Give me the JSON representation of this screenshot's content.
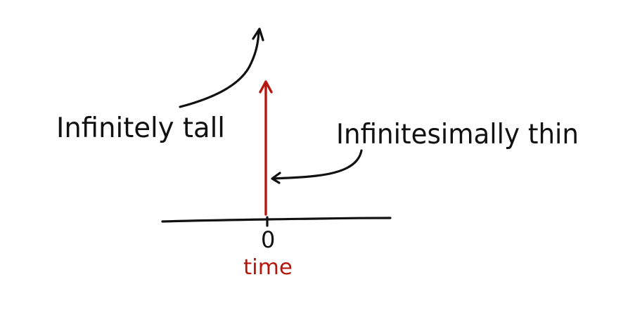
{
  "labels": {
    "tall": "Infinitely tall",
    "thin": "Infinitesimally thin",
    "zero": "0",
    "axis": "time"
  },
  "colors": {
    "ink": "#111111",
    "impulse": "#b5170e",
    "axis_label": "#b5170e",
    "background": "#ffffff"
  }
}
